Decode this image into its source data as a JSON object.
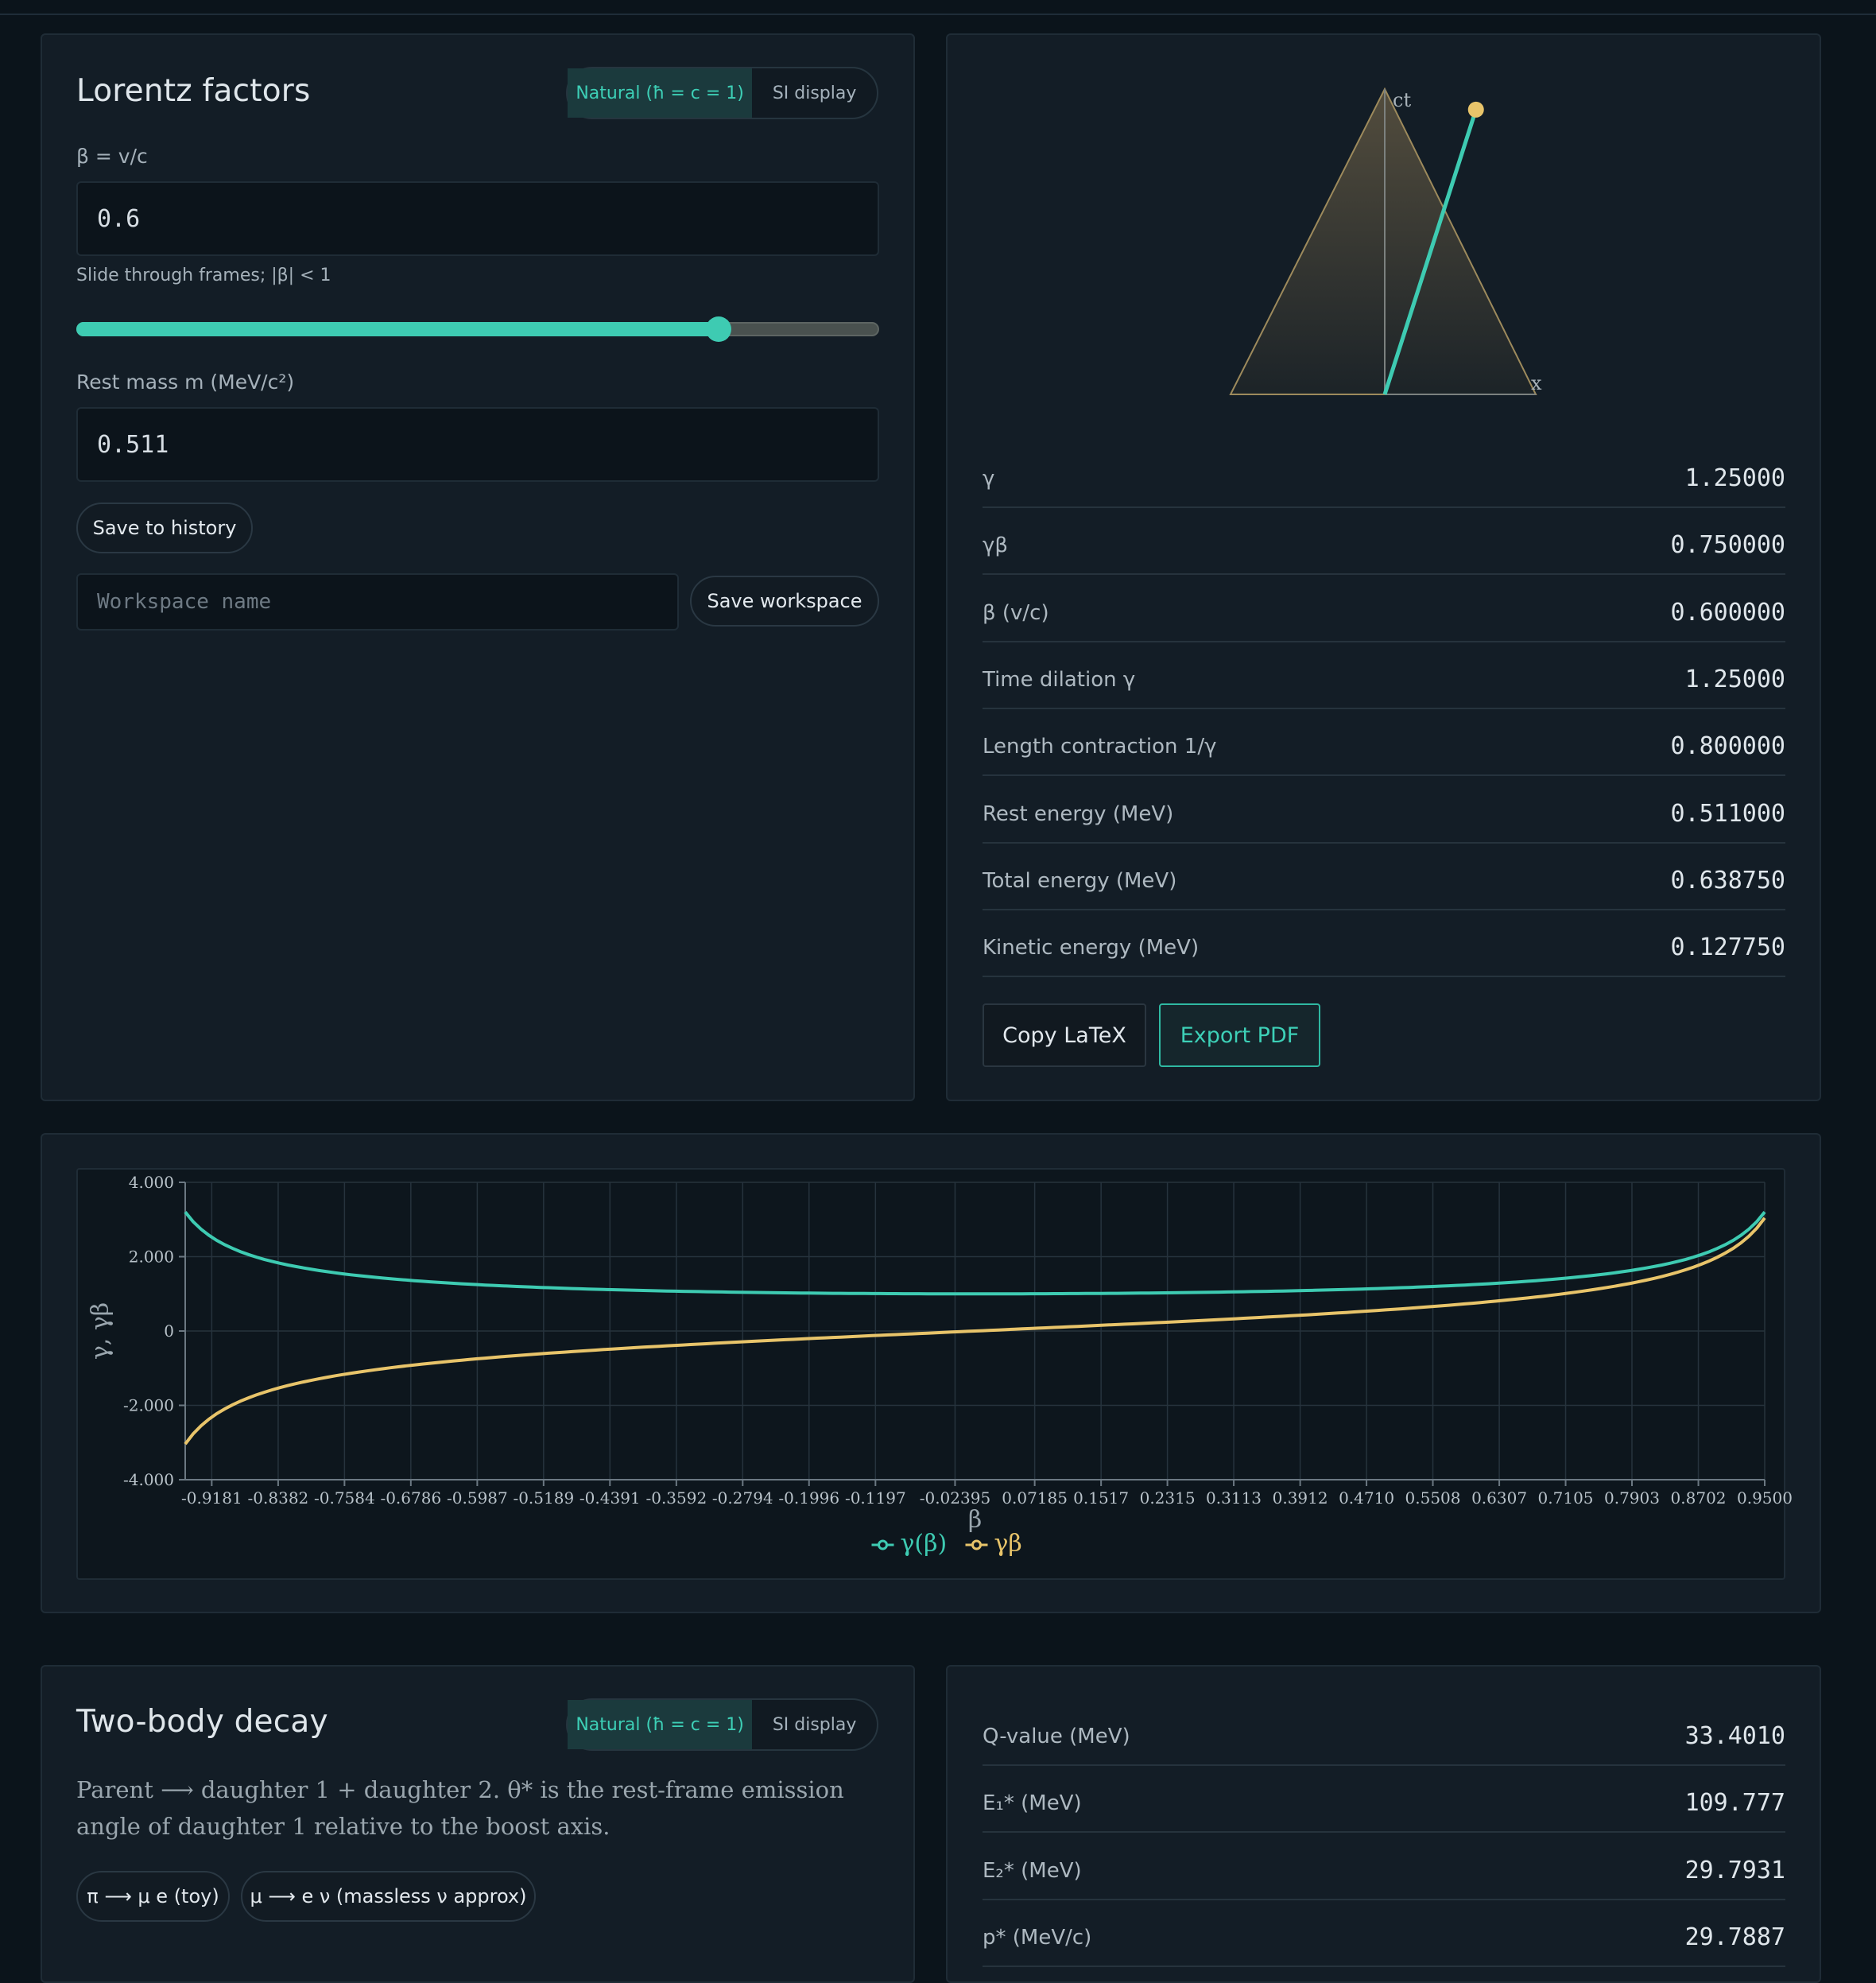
{
  "lorentz": {
    "title": "Lorentz factors",
    "units_toggle": {
      "natural": "Natural (ħ = c = 1)",
      "si": "SI display"
    },
    "beta_label": "β = v/c",
    "beta_value": "0.6",
    "slider_hint": "Slide through frames; |β| < 1",
    "slider_value": 0.6,
    "mass_label": "Rest mass m (MeV/c²)",
    "mass_value": "0.511",
    "save_history": "Save to history",
    "workspace_placeholder": "Workspace name",
    "save_workspace": "Save workspace"
  },
  "diagram": {
    "ct_label": "ct",
    "x_label": "x",
    "beta": 0.6
  },
  "results": [
    {
      "key": "γ",
      "value": "1.25000"
    },
    {
      "key": "γβ",
      "value": "0.750000"
    },
    {
      "key": "β (v/c)",
      "value": "0.600000"
    },
    {
      "key": "Time dilation γ",
      "value": "1.25000"
    },
    {
      "key": "Length contraction 1/γ",
      "value": "0.800000"
    },
    {
      "key": "Rest energy (MeV)",
      "value": "0.511000"
    },
    {
      "key": "Total energy (MeV)",
      "value": "0.638750"
    },
    {
      "key": "Kinetic energy (MeV)",
      "value": "0.127750"
    }
  ],
  "actions": {
    "copy_latex": "Copy LaTeX",
    "export_pdf": "Export PDF"
  },
  "chart_data": {
    "type": "line",
    "xlabel": "β",
    "ylabel": "γ, γβ",
    "xlim": [
      -0.95,
      0.95
    ],
    "ylim": [
      -4,
      4
    ],
    "yticks": [
      "4.000",
      "2.000",
      "0",
      "-2.000",
      "-4.000"
    ],
    "ytick_values": [
      4,
      2,
      0,
      -2,
      -4
    ],
    "xtick_labels": [
      "-0.9181",
      "-0.8382",
      "-0.7584",
      "-0.6786",
      "-0.5987",
      "-0.5189",
      "-0.4391",
      "-0.3592",
      "-0.2794",
      "-0.1996",
      "-0.1197",
      "-0.02395",
      "0.07185",
      "0.1517",
      "0.2315",
      "0.3113",
      "0.3912",
      "0.4710",
      "0.5508",
      "0.6307",
      "0.7105",
      "0.7903",
      "0.8702",
      "0.9500"
    ],
    "grid": true,
    "legend_position": "bottom",
    "colors": {
      "gamma": "#3ecbb2",
      "gammabeta": "#e8c46a"
    },
    "series": [
      {
        "name": "γ(β)",
        "x": [
          -0.95,
          -0.9,
          -0.8,
          -0.7,
          -0.6,
          -0.5,
          -0.4,
          -0.3,
          -0.2,
          -0.1,
          0,
          0.1,
          0.2,
          0.3,
          0.4,
          0.5,
          0.6,
          0.7,
          0.8,
          0.9,
          0.95
        ],
        "values": [
          3.203,
          2.294,
          1.667,
          1.4,
          1.25,
          1.155,
          1.091,
          1.048,
          1.021,
          1.005,
          1.0,
          1.005,
          1.021,
          1.048,
          1.091,
          1.155,
          1.25,
          1.4,
          1.667,
          2.294,
          3.203
        ]
      },
      {
        "name": "γβ",
        "x": [
          -0.95,
          -0.9,
          -0.8,
          -0.7,
          -0.6,
          -0.5,
          -0.4,
          -0.3,
          -0.2,
          -0.1,
          0,
          0.1,
          0.2,
          0.3,
          0.4,
          0.5,
          0.6,
          0.7,
          0.8,
          0.9,
          0.95
        ],
        "values": [
          -3.042,
          -2.065,
          -1.333,
          -0.98,
          -0.75,
          -0.577,
          -0.436,
          -0.314,
          -0.204,
          -0.101,
          0,
          0.101,
          0.204,
          0.314,
          0.436,
          0.577,
          0.75,
          0.98,
          1.333,
          2.065,
          3.042
        ]
      }
    ]
  },
  "decay": {
    "title": "Two-body decay",
    "units_toggle": {
      "natural": "Natural (ħ = c = 1)",
      "si": "SI display"
    },
    "description": "Parent ⟶ daughter 1 + daughter 2. θ* is the rest-frame emission angle of daughter 1 relative to the boost axis.",
    "presets": [
      "π ⟶ μ e (toy)",
      "μ ⟶ e ν (massless ν approx)"
    ]
  },
  "decay_results": [
    {
      "key": "Q-value (MeV)",
      "value": "33.4010"
    },
    {
      "key": "E₁* (MeV)",
      "value": "109.777"
    },
    {
      "key": "E₂* (MeV)",
      "value": "29.7931"
    },
    {
      "key": "p* (MeV/c)",
      "value": "29.7887"
    }
  ]
}
